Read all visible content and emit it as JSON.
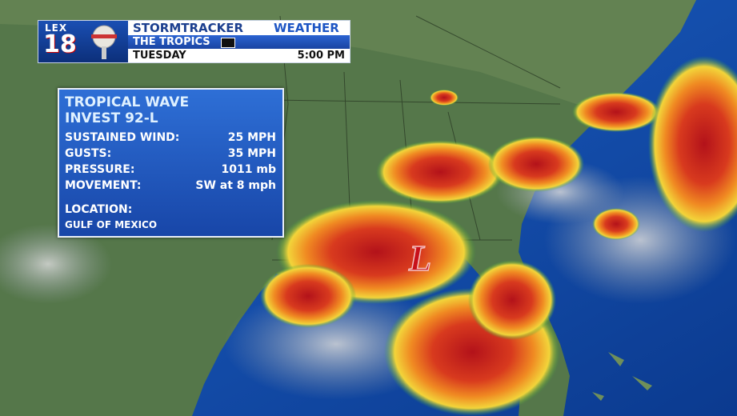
{
  "header": {
    "logo_top": "LEX",
    "logo_number": "18",
    "title_main": "STORMTRACKER",
    "title_accent": "WEATHER",
    "subtitle": "THE TROPICS",
    "day": "TUESDAY",
    "time": "5:00 PM"
  },
  "info_box": {
    "title_lines": [
      "TROPICAL WAVE",
      "INVEST 92-L"
    ],
    "rows": [
      {
        "label": "SUSTAINED WIND:",
        "value": "25 MPH"
      },
      {
        "label": "GUSTS:",
        "value": "35 MPH"
      },
      {
        "label": "PRESSURE:",
        "value": "1011 mb"
      },
      {
        "label": "MOVEMENT:",
        "value": "SW at 8 mph"
      }
    ],
    "location_label": "LOCATION:",
    "location": "GULF OF MEXICO"
  },
  "map": {
    "low_marker": "L"
  }
}
